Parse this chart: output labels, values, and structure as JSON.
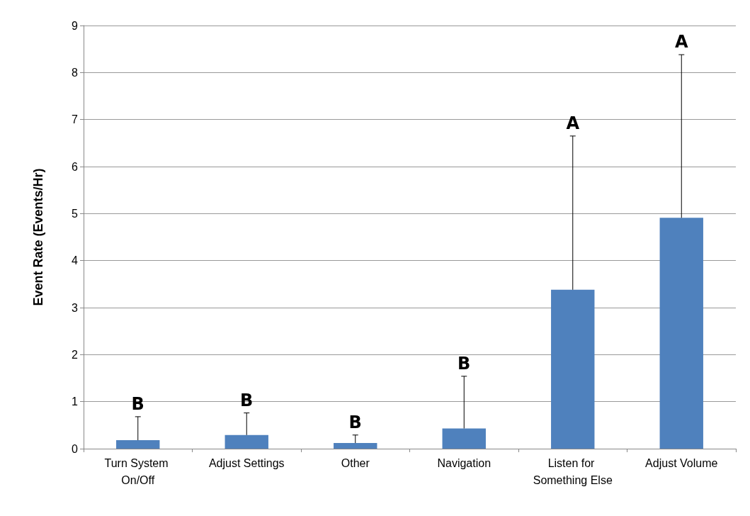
{
  "chart_data": {
    "type": "bar",
    "ylabel": "Event Rate (Events/Hr)",
    "categories": [
      "Turn System On/Off",
      "Adjust Settings",
      "Other",
      "Navigation",
      "Listen for Something Else",
      "Adjust Volume"
    ],
    "values": [
      0.18,
      0.29,
      0.12,
      0.43,
      3.38,
      4.91
    ],
    "errors": [
      [
        0.18,
        0.68
      ],
      [
        0.29,
        0.76
      ],
      [
        0.12,
        0.29
      ],
      [
        0.43,
        1.54
      ],
      [
        3.38,
        6.65
      ],
      [
        4.91,
        8.38
      ]
    ],
    "color": "#4f81bd",
    "ylim": [
      0,
      9
    ],
    "yticks": [
      0,
      1,
      2,
      3,
      4,
      5,
      6,
      7,
      8,
      9
    ],
    "grid": "y",
    "annotations": [
      "B",
      "B",
      "B",
      "B",
      "A",
      "A"
    ]
  }
}
